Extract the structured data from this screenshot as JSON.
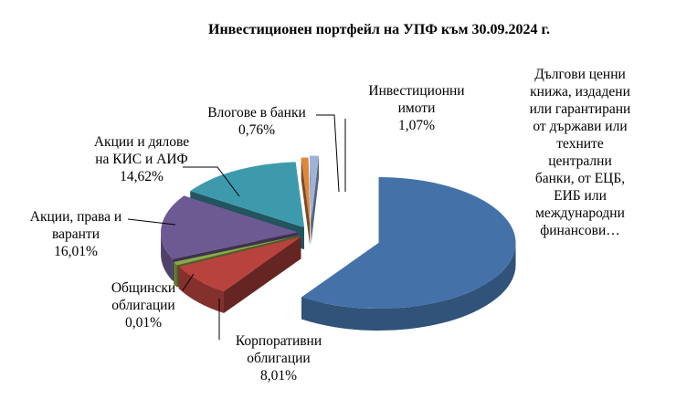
{
  "chart_data": {
    "type": "pie",
    "title": "Инвестиционен портфейл на УПФ към 30.09.2024 г.",
    "slices": [
      {
        "label": "Дългови ценни книжа, издадени или гарантирани от държави или техните централни банки, от ЕЦБ, ЕИБ или международни финансови…",
        "value": 59.52,
        "value_label": "",
        "color": "#4472a8"
      },
      {
        "label": "Корпоративни облигации",
        "value": 8.01,
        "value_label": "8,01%",
        "color": "#b8433e"
      },
      {
        "label": "Общински облигации",
        "value": 0.01,
        "value_label": "0,01%",
        "color": "#8aa84a"
      },
      {
        "label": "Акции, права и варанти",
        "value": 16.01,
        "value_label": "16,01%",
        "color": "#6e5a92"
      },
      {
        "label": "Акции и дялове на КИС и АИФ",
        "value": 14.62,
        "value_label": "14,62%",
        "color": "#3d9aad"
      },
      {
        "label": "Влогове в банки",
        "value": 0.76,
        "value_label": "0,76%",
        "color": "#e0863a"
      },
      {
        "label": "Инвестиционни имоти",
        "value": 1.07,
        "value_label": "1,07%",
        "color": "#9db4d8"
      }
    ],
    "display_lines": [
      [
        "Дългови ценни",
        "книжа, издадени",
        "или гарантирани",
        "от държави или",
        "техните",
        "централни",
        "банки, от ЕЦБ,",
        "ЕИБ или",
        "международни",
        "финансови…"
      ],
      [
        "Корпоративни",
        "облигации",
        "8,01%"
      ],
      [
        "Общински",
        "облигации",
        "0,01%"
      ],
      [
        "Акции, права и",
        "варанти",
        "16,01%"
      ],
      [
        "Акции и дялове",
        "на КИС и АИФ",
        "14,62%"
      ],
      [
        "Влогове в банки",
        "0,76%"
      ],
      [
        "Инвестиционни",
        "имоти",
        "1,07%"
      ]
    ],
    "legend": "none",
    "style": "3d-exploded-pie"
  }
}
